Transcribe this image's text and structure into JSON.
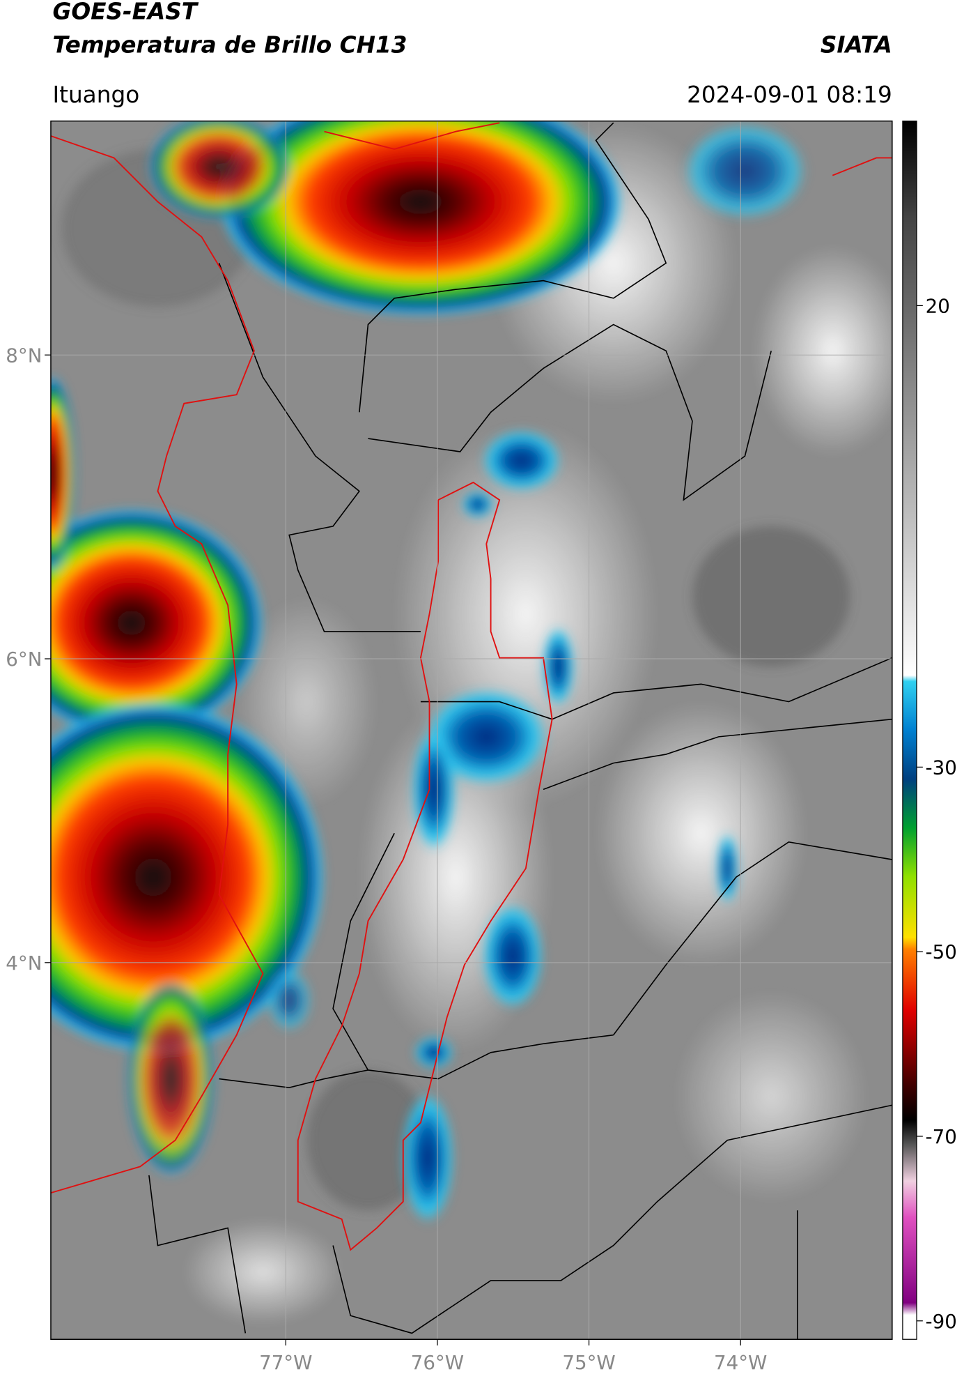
{
  "header": {
    "title": "GOES-EAST",
    "subtitle": "Temperatura de Brillo CH13",
    "brand": "SIATA",
    "location": "Ituango",
    "timestamp": "2024-09-01 08:19"
  },
  "map": {
    "xlim": [
      -78.55,
      -73.0
    ],
    "ylim": [
      1.52,
      9.54
    ],
    "xticks": [
      {
        "value": -77,
        "label": "77°W"
      },
      {
        "value": -76,
        "label": "76°W"
      },
      {
        "value": -75,
        "label": "75°W"
      },
      {
        "value": -74,
        "label": "74°W"
      }
    ],
    "yticks": [
      {
        "value": 8,
        "label": "8°N"
      },
      {
        "value": 6,
        "label": "6°N"
      },
      {
        "value": 4,
        "label": "4°N"
      }
    ],
    "grid": true
  },
  "colorbar": {
    "lim": [
      -92,
      40
    ],
    "ticks": [
      20,
      -30,
      -50,
      -70,
      -90
    ]
  }
}
